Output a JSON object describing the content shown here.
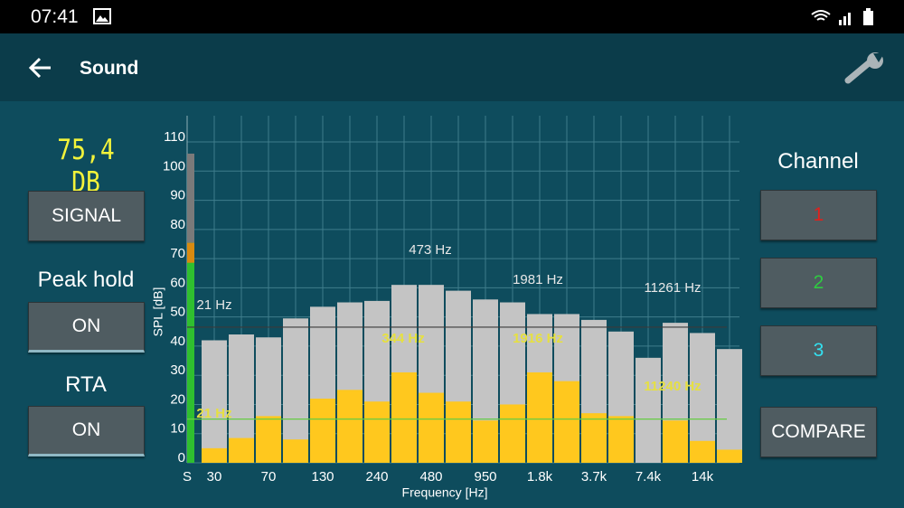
{
  "status_bar": {
    "time": "07:41"
  },
  "app_bar": {
    "title": "Sound"
  },
  "left_panel": {
    "level_display": "75,4 DB",
    "signal_button": "SIGNAL",
    "peak_hold_label": "Peak hold",
    "peak_hold_button": "ON",
    "rta_label": "RTA",
    "rta_button": "ON"
  },
  "right_panel": {
    "channel_label": "Channel",
    "channels": [
      {
        "label": "1",
        "color": "#e0201c"
      },
      {
        "label": "2",
        "color": "#2ecc40"
      },
      {
        "label": "3",
        "color": "#33e0f0"
      }
    ],
    "compare_button": "COMPARE"
  },
  "chart_data": {
    "type": "bar",
    "y_label": "SPL [dB]",
    "x_label": "Frequency [Hz]",
    "categories": [
      "30",
      null,
      "70",
      null,
      "130",
      null,
      "240",
      null,
      "480",
      null,
      "950",
      null,
      "1.8k",
      null,
      "3.7k",
      null,
      "7.4k",
      null,
      "14k",
      null
    ],
    "series": [
      {
        "color": "#c4c4c4",
        "values": [
          42,
          44,
          43,
          49.5,
          53.5,
          55,
          55.5,
          61,
          61,
          59,
          56,
          55,
          51,
          51,
          49,
          45,
          36,
          48,
          44.5,
          39
        ]
      },
      {
        "color": "#ffc81e",
        "values": [
          5,
          8.5,
          16,
          8,
          22,
          25,
          21,
          31,
          24,
          21,
          14.5,
          20,
          31,
          28,
          17,
          16,
          0,
          14.5,
          7.5,
          4.5
        ]
      }
    ],
    "meter": {
      "label": "S",
      "value": 75.4,
      "peak": 106
    },
    "reference_lines": [
      {
        "value": 46.5,
        "color": "#3a3a3a"
      },
      {
        "value": 15,
        "color": "#66cc44"
      }
    ],
    "annotations": [
      {
        "text": "21 Hz",
        "color": "#e8e8e8"
      },
      {
        "text": "473 Hz",
        "color": "#e8e8e8"
      },
      {
        "text": "1981 Hz",
        "color": "#e8e8e8"
      },
      {
        "text": "11261 Hz",
        "color": "#e8e8e8"
      },
      {
        "text": "21 Hz",
        "color": "#e6e040"
      },
      {
        "text": "344 Hz",
        "color": "#e6e040"
      },
      {
        "text": "1916 Hz",
        "color": "#e6e040"
      },
      {
        "text": "11240 Hz",
        "color": "#e6e040"
      }
    ],
    "ylim": [
      0,
      119
    ],
    "yticks": [
      0,
      10,
      20,
      30,
      40,
      50,
      60,
      70,
      80,
      90,
      100,
      110
    ],
    "grid": true
  }
}
